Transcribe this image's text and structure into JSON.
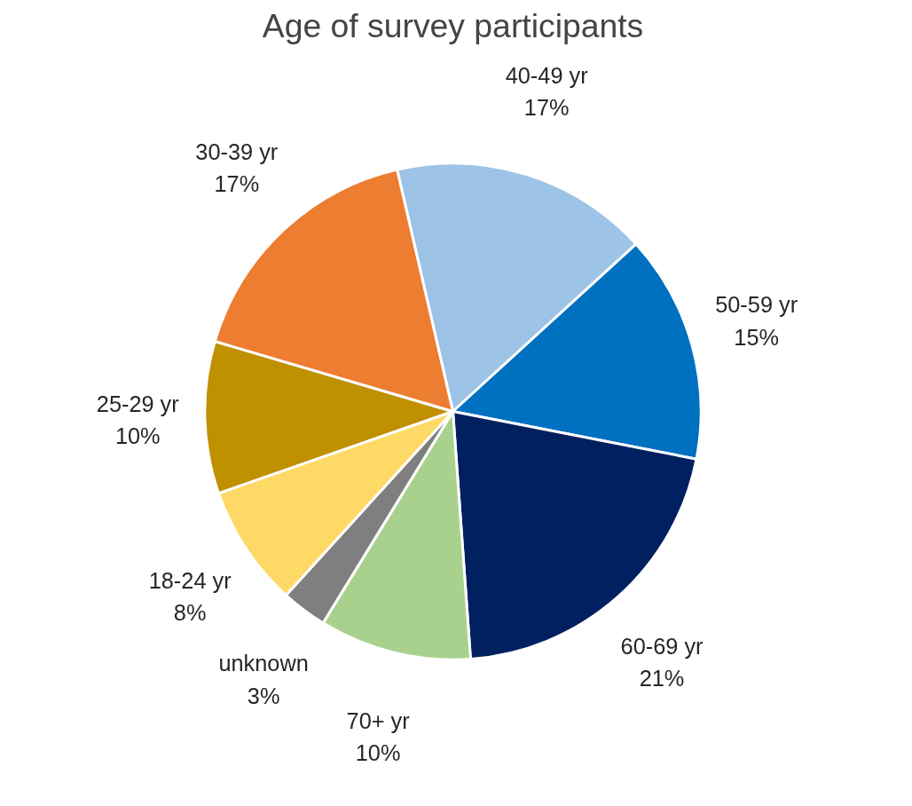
{
  "chart_data": {
    "type": "pie",
    "title": "Age of survey participants",
    "categories": [
      "40-49 yr",
      "50-59 yr",
      "60-69 yr",
      "70+ yr",
      "unknown",
      "18-24 yr",
      "25-29 yr",
      "30-39 yr"
    ],
    "values": [
      17,
      15,
      21,
      10,
      3,
      8,
      10,
      17
    ],
    "value_labels": [
      "17%",
      "15%",
      "21%",
      "10%",
      "3%",
      "8%",
      "10%",
      "17%"
    ],
    "colors": [
      "#9dc3e6",
      "#0070c0",
      "#002060",
      "#a9d18e",
      "#7f7f7f",
      "#ffd966",
      "#bf9000",
      "#ed7d31"
    ]
  }
}
